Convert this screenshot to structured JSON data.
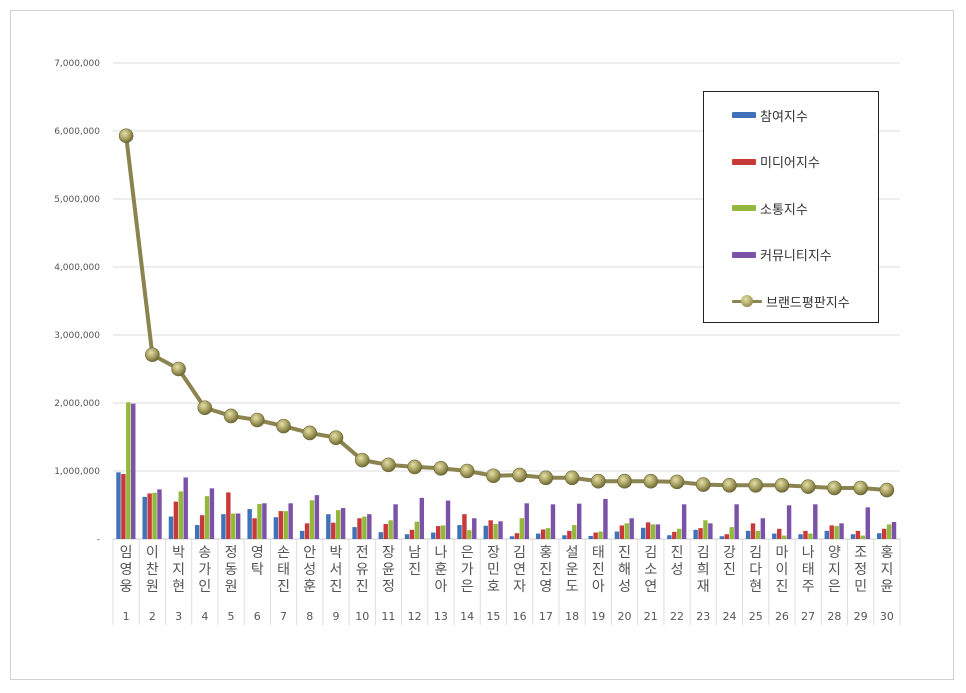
{
  "chart_data": {
    "type": "bar",
    "title": "",
    "xlabel": "",
    "ylabel": "",
    "ylim": [
      0,
      7000000
    ],
    "y_ticks": [
      "-",
      "1,000,000",
      "2,000,000",
      "3,000,000",
      "4,000,000",
      "5,000,000",
      "6,000,000",
      "7,000,000"
    ],
    "grid": true,
    "legend_position": "right",
    "ranks": [
      "1",
      "2",
      "3",
      "4",
      "5",
      "6",
      "7",
      "8",
      "9",
      "10",
      "11",
      "12",
      "13",
      "14",
      "15",
      "16",
      "17",
      "18",
      "19",
      "20",
      "21",
      "22",
      "23",
      "24",
      "25",
      "26",
      "27",
      "28",
      "29",
      "30"
    ],
    "categories": [
      "임영웅",
      "이찬원",
      "박지현",
      "송가인",
      "정동원",
      "영탁",
      "손태진",
      "안성훈",
      "박서진",
      "전유진",
      "장윤정",
      "남진",
      "나훈아",
      "은가은",
      "장민호",
      "김연자",
      "홍진영",
      "설운도",
      "태진아",
      "진해성",
      "김소연",
      "진성",
      "김희재",
      "강진",
      "김다현",
      "마이진",
      "나태주",
      "양지은",
      "조정민",
      "홍지윤"
    ],
    "series": [
      {
        "name": "참여지수",
        "type": "bar",
        "color": "#3f72b8",
        "values": [
          980000,
          620000,
          330000,
          205000,
          365000,
          440000,
          320000,
          120000,
          365000,
          175000,
          100000,
          70000,
          95000,
          205000,
          195000,
          40000,
          80000,
          55000,
          45000,
          110000,
          165000,
          55000,
          135000,
          40000,
          120000,
          80000,
          70000,
          120000,
          70000,
          85000
        ]
      },
      {
        "name": "미디어지수",
        "type": "bar",
        "color": "#c83a3a",
        "values": [
          955000,
          670000,
          550000,
          350000,
          685000,
          305000,
          410000,
          230000,
          240000,
          305000,
          220000,
          135000,
          190000,
          365000,
          275000,
          85000,
          140000,
          120000,
          95000,
          200000,
          245000,
          105000,
          160000,
          70000,
          230000,
          150000,
          120000,
          200000,
          120000,
          150000
        ]
      },
      {
        "name": "소통지수",
        "type": "bar",
        "color": "#93b83c",
        "values": [
          2010000,
          680000,
          700000,
          630000,
          375000,
          515000,
          410000,
          570000,
          425000,
          330000,
          275000,
          255000,
          200000,
          130000,
          220000,
          305000,
          160000,
          205000,
          110000,
          230000,
          215000,
          150000,
          275000,
          175000,
          120000,
          50000,
          80000,
          190000,
          50000,
          215000
        ]
      },
      {
        "name": "커뮤니티지수",
        "type": "bar",
        "color": "#7a52a8",
        "values": [
          1990000,
          730000,
          905000,
          745000,
          375000,
          525000,
          525000,
          645000,
          455000,
          365000,
          510000,
          605000,
          565000,
          305000,
          260000,
          525000,
          510000,
          520000,
          590000,
          305000,
          215000,
          510000,
          230000,
          510000,
          305000,
          495000,
          510000,
          230000,
          465000,
          250000
        ]
      },
      {
        "name": "브랜드평판지수",
        "type": "line",
        "color": "#8c8450",
        "values": [
          5930000,
          2710000,
          2500000,
          1930000,
          1810000,
          1750000,
          1660000,
          1560000,
          1490000,
          1160000,
          1090000,
          1060000,
          1040000,
          1000000,
          930000,
          940000,
          900000,
          900000,
          850000,
          850000,
          850000,
          840000,
          800000,
          790000,
          790000,
          790000,
          770000,
          750000,
          750000,
          720000
        ]
      }
    ]
  }
}
